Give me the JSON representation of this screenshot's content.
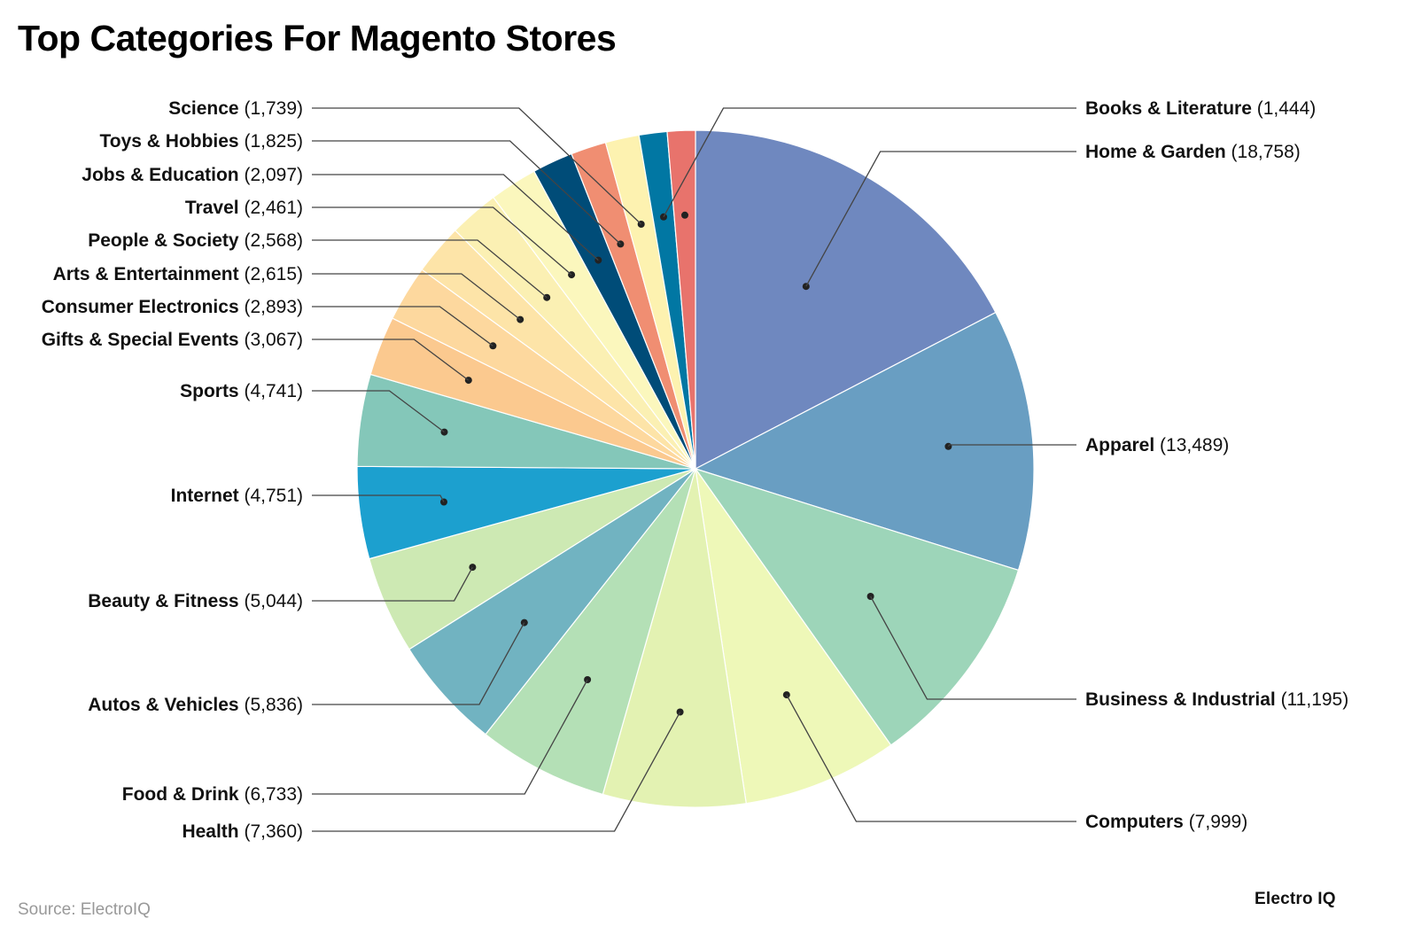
{
  "title": "Top Categories For Magento Stores",
  "source": "Source: ElectroIQ",
  "brand": "Electro IQ",
  "chart_data": {
    "type": "pie",
    "title": "Top Categories For Magento Stores",
    "slices": [
      {
        "label": "Home & Garden",
        "value": 18758,
        "value_label": "(18,758)",
        "color": "#6f88bf"
      },
      {
        "label": "Apparel",
        "value": 13489,
        "value_label": "(13,489)",
        "color": "#699ec2"
      },
      {
        "label": "Business & Industrial",
        "value": 11195,
        "value_label": "(11,195)",
        "color": "#9dd5b9"
      },
      {
        "label": "Computers",
        "value": 7999,
        "value_label": "(7,999)",
        "color": "#eef8b8"
      },
      {
        "label": "Health",
        "value": 7360,
        "value_label": "(7,360)",
        "color": "#e3f2b2"
      },
      {
        "label": "Food & Drink",
        "value": 6733,
        "value_label": "(6,733)",
        "color": "#b4e0b6"
      },
      {
        "label": "Autos & Vehicles",
        "value": 5836,
        "value_label": "(5,836)",
        "color": "#71b3c1"
      },
      {
        "label": "Beauty & Fitness",
        "value": 5044,
        "value_label": "(5,044)",
        "color": "#cde9b3"
      },
      {
        "label": "Internet",
        "value": 4751,
        "value_label": "(4,751)",
        "color": "#1ca0cf"
      },
      {
        "label": "Sports",
        "value": 4741,
        "value_label": "(4,741)",
        "color": "#84c7b9"
      },
      {
        "label": "Gifts & Special Events",
        "value": 3067,
        "value_label": "(3,067)",
        "color": "#fbc98f"
      },
      {
        "label": "Consumer Electronics",
        "value": 2893,
        "value_label": "(2,893)",
        "color": "#fdd89e"
      },
      {
        "label": "Arts & Entertainment",
        "value": 2615,
        "value_label": "(2,615)",
        "color": "#fde4a8"
      },
      {
        "label": "People & Society",
        "value": 2568,
        "value_label": "(2,568)",
        "color": "#fbf0b3"
      },
      {
        "label": "Travel",
        "value": 2461,
        "value_label": "(2,461)",
        "color": "#fbf7bd"
      },
      {
        "label": "Jobs & Education",
        "value": 2097,
        "value_label": "(2,097)",
        "color": "#004c78"
      },
      {
        "label": "Toys & Hobbies",
        "value": 1825,
        "value_label": "(1,825)",
        "color": "#f08e72"
      },
      {
        "label": "Science",
        "value": 1739,
        "value_label": "(1,739)",
        "color": "#fdf2b0"
      },
      {
        "label": "Books & Literature",
        "value": 1444,
        "value_label": "(1,444)",
        "color": "#0177a3"
      },
      {
        "label": "Books & Literature",
        "value": 1444,
        "value_label": "(1,444)",
        "color": "#e8736c"
      }
    ]
  }
}
